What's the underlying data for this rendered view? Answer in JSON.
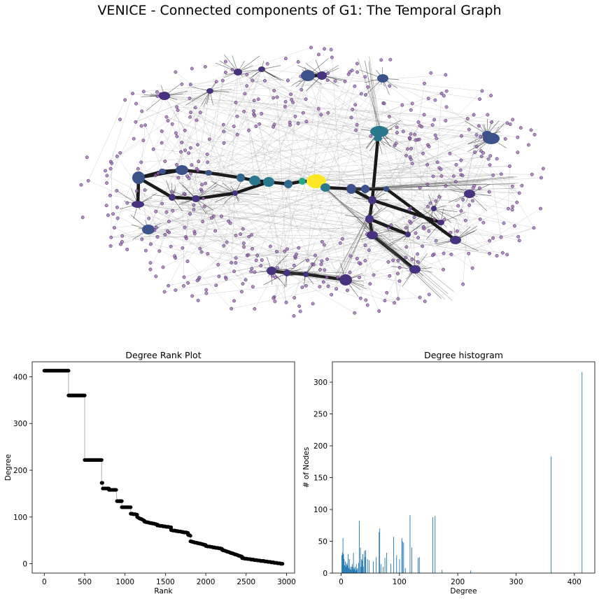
{
  "figure": {
    "title": "VENICE - Connected components of G1: The Temporal Graph"
  },
  "chart_data": [
    {
      "type": "network",
      "colors": {
        "low": "#482878",
        "mid": "#2a788e",
        "high": "#fde725",
        "edge": "#1a1a1a"
      }
    },
    {
      "type": "scatter",
      "title": "Degree Rank Plot",
      "xlabel": "Rank",
      "ylabel": "Degree",
      "xlim": [
        -150,
        3100
      ],
      "ylim": [
        -20,
        432
      ],
      "xticks": [
        0,
        500,
        1000,
        1500,
        2000,
        2500,
        3000
      ],
      "yticks": [
        0,
        100,
        200,
        300,
        400
      ],
      "steps": [
        [
          0,
          300,
          413,
          413
        ],
        [
          300,
          500,
          360,
          360
        ],
        [
          500,
          710,
          222,
          222
        ],
        [
          710,
          720,
          173,
          173
        ],
        [
          725,
          800,
          161,
          161
        ],
        [
          800,
          890,
          158,
          158
        ],
        [
          900,
          960,
          134,
          134
        ],
        [
          960,
          1070,
          121,
          121
        ],
        [
          1070,
          1150,
          107,
          105
        ],
        [
          1150,
          1240,
          100,
          92
        ],
        [
          1240,
          1400,
          90,
          84
        ],
        [
          1400,
          1570,
          82,
          78
        ],
        [
          1570,
          1780,
          72,
          66
        ],
        [
          1780,
          1810,
          62,
          60
        ],
        [
          1810,
          2000,
          48,
          40
        ],
        [
          2000,
          2200,
          38,
          32
        ],
        [
          2200,
          2450,
          30,
          15
        ],
        [
          2450,
          2950,
          12,
          0
        ]
      ],
      "color": "#000000"
    },
    {
      "type": "bar",
      "title": "Degree histogram",
      "xlabel": "Degree",
      "ylabel": "# of Nodes",
      "xlim": [
        -15,
        435
      ],
      "ylim": [
        0,
        332
      ],
      "xticks": [
        0,
        100,
        200,
        300,
        400
      ],
      "yticks": [
        0,
        50,
        100,
        150,
        200,
        250,
        300
      ],
      "bars": [
        [
          1,
          28
        ],
        [
          2,
          32
        ],
        [
          3,
          55
        ],
        [
          4,
          30
        ],
        [
          5,
          22
        ],
        [
          6,
          12
        ],
        [
          7,
          18
        ],
        [
          8,
          10
        ],
        [
          9,
          14
        ],
        [
          10,
          16
        ],
        [
          11,
          12
        ],
        [
          12,
          30
        ],
        [
          13,
          8
        ],
        [
          14,
          22
        ],
        [
          15,
          6
        ],
        [
          16,
          10
        ],
        [
          17,
          5
        ],
        [
          18,
          10
        ],
        [
          19,
          14
        ],
        [
          20,
          9
        ],
        [
          21,
          32
        ],
        [
          22,
          6
        ],
        [
          23,
          8
        ],
        [
          24,
          10
        ],
        [
          25,
          4
        ],
        [
          26,
          14
        ],
        [
          27,
          6
        ],
        [
          28,
          8
        ],
        [
          30,
          16
        ],
        [
          31,
          82
        ],
        [
          33,
          40
        ],
        [
          34,
          10
        ],
        [
          35,
          22
        ],
        [
          36,
          20
        ],
        [
          37,
          30
        ],
        [
          38,
          10
        ],
        [
          40,
          35
        ],
        [
          41,
          25
        ],
        [
          42,
          36
        ],
        [
          45,
          22
        ],
        [
          48,
          20
        ],
        [
          55,
          18
        ],
        [
          60,
          25
        ],
        [
          65,
          64
        ],
        [
          66,
          70
        ],
        [
          68,
          14
        ],
        [
          72,
          10
        ],
        [
          75,
          24
        ],
        [
          78,
          32
        ],
        [
          85,
          15
        ],
        [
          90,
          57
        ],
        [
          95,
          28
        ],
        [
          100,
          22
        ],
        [
          104,
          55
        ],
        [
          105,
          50
        ],
        [
          107,
          48
        ],
        [
          110,
          8
        ],
        [
          118,
          91
        ],
        [
          121,
          40
        ],
        [
          132,
          24
        ],
        [
          134,
          25
        ],
        [
          157,
          88
        ],
        [
          161,
          90
        ],
        [
          173,
          5
        ],
        [
          222,
          4
        ],
        [
          360,
          183
        ],
        [
          413,
          316
        ]
      ],
      "color": "#1f77b4"
    }
  ]
}
